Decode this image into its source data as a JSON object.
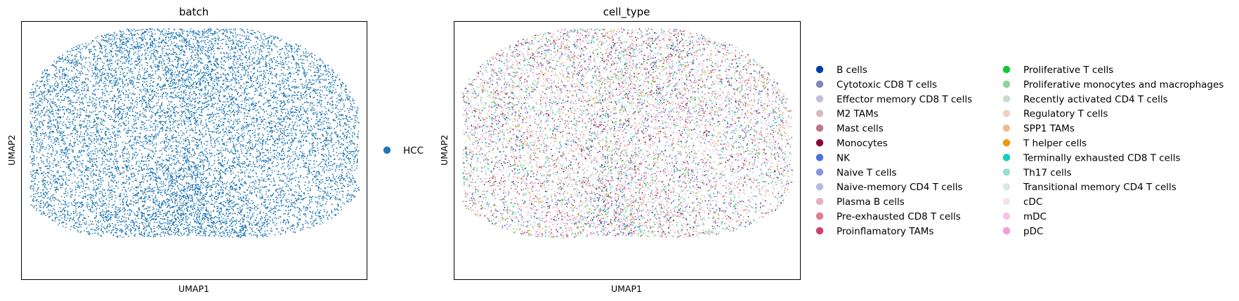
{
  "chart_data": [
    {
      "type": "scatter",
      "title": "batch",
      "xlabel": "UMAP1",
      "ylabel": "UMAP2",
      "legend": {
        "placement": "right",
        "entries": [
          {
            "name": "HCC",
            "color": "#1f77b4"
          }
        ]
      },
      "series": [
        {
          "name": "HCC",
          "color": "#1f77b4",
          "point_count_approx": 11000
        }
      ],
      "ticks": false,
      "grid": false
    },
    {
      "type": "scatter",
      "title": "cell_type",
      "xlabel": "UMAP1",
      "ylabel": "UMAP2",
      "legend": {
        "placement": "right",
        "columns": 2,
        "entries": [
          {
            "name": "B cells",
            "color": "#023fa5"
          },
          {
            "name": "Cytotoxic CD8 T cells",
            "color": "#7d87b9"
          },
          {
            "name": "Effector memory CD8 T cells",
            "color": "#bec1d4"
          },
          {
            "name": "M2 TAMs",
            "color": "#d6bcc0"
          },
          {
            "name": "Mast cells",
            "color": "#bb7784"
          },
          {
            "name": "Monocytes",
            "color": "#8e063b"
          },
          {
            "name": "NK",
            "color": "#4a6fe3"
          },
          {
            "name": "Naive T cells",
            "color": "#8595e1"
          },
          {
            "name": "Naive-memory CD4 T cells",
            "color": "#b5bbe3"
          },
          {
            "name": "Plasma B cells",
            "color": "#e6afb9"
          },
          {
            "name": "Pre-exhausted CD8 T cells",
            "color": "#e07b91"
          },
          {
            "name": "Proinflamatory TAMs",
            "color": "#d33f6a"
          },
          {
            "name": "Proliferative T cells",
            "color": "#11c638"
          },
          {
            "name": "Proliferative monocytes and macrophages",
            "color": "#8dd593"
          },
          {
            "name": "Recently activated CD4 T cells",
            "color": "#c6dec7"
          },
          {
            "name": "Regulatory T cells",
            "color": "#ead3c6"
          },
          {
            "name": "SPP1 TAMs",
            "color": "#f0b98d"
          },
          {
            "name": "T helper cells",
            "color": "#ef9708"
          },
          {
            "name": "Terminally exhausted CD8 T cells",
            "color": "#0fcfc0"
          },
          {
            "name": "Th17 cells",
            "color": "#9cded6"
          },
          {
            "name": "Transitional memory CD4 T cells",
            "color": "#d5eae7"
          },
          {
            "name": "cDC",
            "color": "#f3e1eb"
          },
          {
            "name": "mDC",
            "color": "#f6c4e1"
          },
          {
            "name": "pDC",
            "color": "#f79cd4"
          }
        ]
      },
      "ticks": false,
      "grid": false
    }
  ]
}
